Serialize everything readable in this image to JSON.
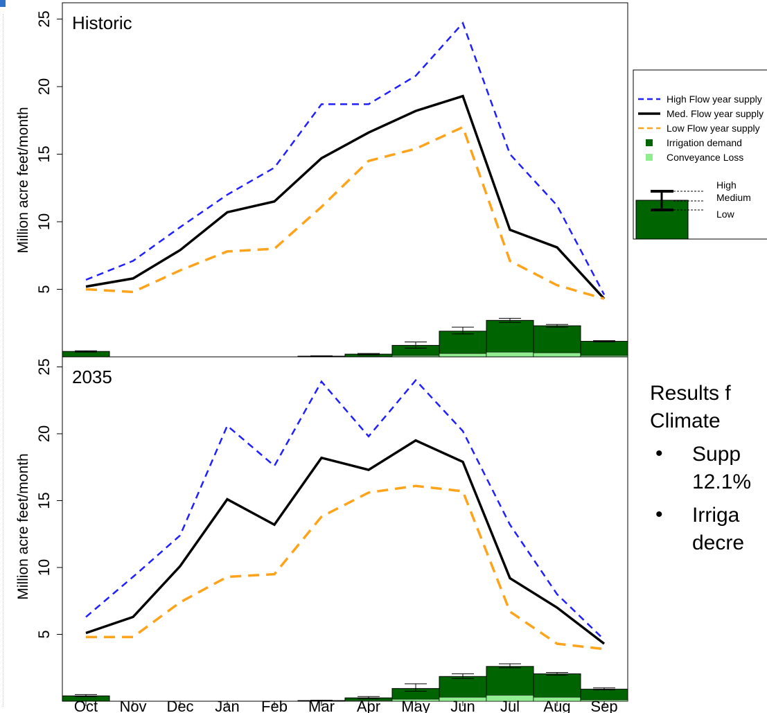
{
  "colors": {
    "high": "#1f1fff",
    "med": "#000000",
    "low": "#ffa31a",
    "irrigation": "#006400",
    "conveyance": "#90ee90"
  },
  "axis_label": "Million acre feet/month",
  "legend": {
    "items": [
      {
        "label": "High Flow year supply",
        "type": "dashed",
        "color": "#1f1fff"
      },
      {
        "label": "Med. Flow year supply",
        "type": "solid",
        "color": "#000000"
      },
      {
        "label": "Low Flow year supply",
        "type": "dashed",
        "color": "#ffa31a"
      },
      {
        "label": "Irrigation demand",
        "type": "square",
        "color": "#006400"
      },
      {
        "label": "Conveyance Loss",
        "type": "square",
        "color": "#90ee90"
      }
    ],
    "errorbar_labels": [
      "High",
      "Medium",
      "Low"
    ]
  },
  "right_text": {
    "line1": "Results f",
    "line2": "Climate",
    "bullets": [
      {
        "line1": "Supp",
        "line2": "12.1%"
      },
      {
        "line1": "Irriga",
        "line2": "decre"
      }
    ]
  },
  "chart_data": [
    {
      "type": "line",
      "title": "Historic",
      "ylabel": "Million acre feet/month",
      "ylim": [
        0,
        25
      ],
      "yticks": [
        5,
        10,
        15,
        20,
        25
      ],
      "categories": [
        "Oct",
        "Nov",
        "Dec",
        "Jan",
        "Feb",
        "Mar",
        "Apr",
        "May",
        "Jun",
        "Jul",
        "Aug",
        "Sep"
      ],
      "series": [
        {
          "name": "High Flow year supply",
          "style": "dashed",
          "values": [
            5.7,
            7.1,
            9.6,
            12.0,
            14.0,
            18.7,
            18.7,
            20.8,
            24.7,
            15.0,
            11.2,
            4.6
          ]
        },
        {
          "name": "Med. Flow year supply",
          "style": "solid",
          "values": [
            5.2,
            5.8,
            7.9,
            10.7,
            11.5,
            14.7,
            16.6,
            18.2,
            19.3,
            9.4,
            8.1,
            4.3
          ]
        },
        {
          "name": "Low Flow year supply",
          "style": "dashed",
          "values": [
            5.0,
            4.8,
            6.4,
            7.8,
            8.0,
            11.1,
            14.5,
            15.4,
            17.0,
            7.1,
            5.3,
            4.3
          ]
        }
      ],
      "bars": {
        "irrigation_demand": [
          0.4,
          0,
          0,
          0,
          0,
          0.05,
          0.2,
          0.85,
          1.9,
          2.7,
          2.3,
          1.15
        ],
        "conveyance_loss": [
          0,
          0,
          0,
          0,
          0,
          0,
          0,
          0.1,
          0.25,
          0.35,
          0.3,
          0.1
        ],
        "error_high": [
          0.45,
          0,
          0,
          0,
          0,
          0.08,
          0.25,
          1.1,
          2.2,
          2.85,
          2.4,
          1.2
        ],
        "error_low": [
          0.35,
          0,
          0,
          0,
          0,
          0.03,
          0.15,
          0.65,
          1.7,
          2.55,
          2.2,
          1.1
        ]
      }
    },
    {
      "type": "line",
      "title": "2035",
      "ylabel": "Million acre feet/month",
      "ylim": [
        0,
        25
      ],
      "yticks": [
        5,
        10,
        15,
        20,
        25
      ],
      "categories": [
        "Oct",
        "Nov",
        "Dec",
        "Jan",
        "Feb",
        "Mar",
        "Apr",
        "May",
        "Jun",
        "Jul",
        "Aug",
        "Sep"
      ],
      "series": [
        {
          "name": "High Flow year supply",
          "style": "dashed",
          "values": [
            6.3,
            9.3,
            12.4,
            20.6,
            17.6,
            23.9,
            19.8,
            24.0,
            20.2,
            13.2,
            8.0,
            4.6
          ]
        },
        {
          "name": "Med. Flow year supply",
          "style": "solid",
          "values": [
            5.1,
            6.3,
            10.1,
            15.1,
            13.2,
            18.2,
            17.3,
            19.5,
            17.9,
            9.2,
            7.0,
            4.3
          ]
        },
        {
          "name": "Low Flow year supply",
          "style": "dashed",
          "values": [
            4.8,
            4.8,
            7.4,
            9.3,
            9.5,
            13.8,
            15.6,
            16.1,
            15.7,
            6.7,
            4.3,
            3.9
          ]
        }
      ],
      "bars": {
        "irrigation_demand": [
          0.4,
          0,
          0,
          0,
          0,
          0.05,
          0.25,
          0.95,
          1.85,
          2.6,
          2.05,
          0.9
        ],
        "conveyance_loss": [
          0,
          0,
          0,
          0,
          0,
          0,
          0.05,
          0.15,
          0.3,
          0.45,
          0.3,
          0.1
        ],
        "error_high": [
          0.5,
          0,
          0,
          0,
          0,
          0.08,
          0.35,
          1.3,
          2.05,
          2.8,
          2.15,
          1.0
        ],
        "error_low": [
          0.35,
          0,
          0,
          0,
          0,
          0.03,
          0.2,
          0.75,
          1.7,
          2.5,
          1.95,
          0.85
        ]
      }
    }
  ]
}
